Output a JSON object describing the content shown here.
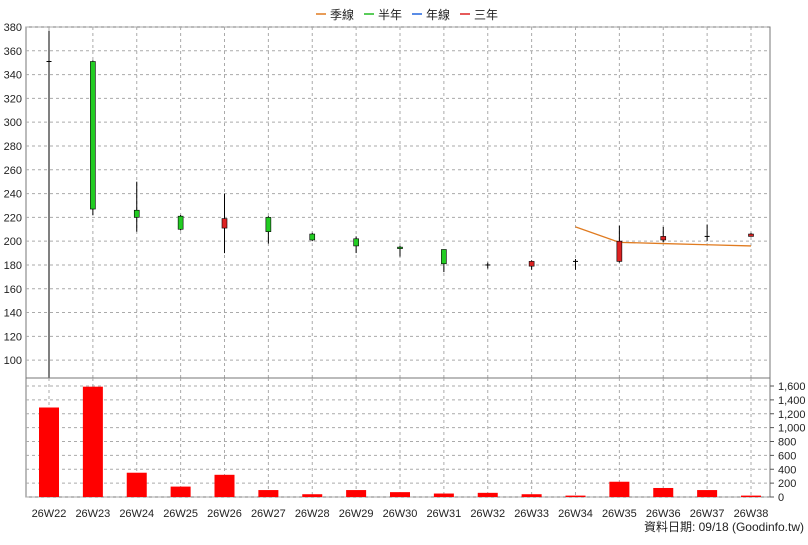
{
  "chart_data": {
    "type": "candlestick-volume",
    "legend": [
      {
        "label": "季線",
        "color": "#E07B20"
      },
      {
        "label": "半年",
        "color": "#22BB22"
      },
      {
        "label": "年線",
        "color": "#2266DD"
      },
      {
        "label": "三年",
        "color": "#DD2222"
      }
    ],
    "categories": [
      "26W22",
      "26W23",
      "26W24",
      "26W25",
      "26W26",
      "26W27",
      "26W28",
      "26W29",
      "26W30",
      "26W31",
      "26W32",
      "26W33",
      "26W34",
      "26W35",
      "26W36",
      "26W37",
      "26W38"
    ],
    "price": {
      "ylim": [
        85,
        380
      ],
      "ticks": [
        100,
        120,
        140,
        160,
        180,
        200,
        220,
        240,
        260,
        280,
        300,
        320,
        340,
        360,
        380
      ],
      "candles": [
        {
          "open": 351,
          "high": 377,
          "low": 85,
          "close": 351
        },
        {
          "open": 227,
          "high": 352,
          "low": 222,
          "close": 351
        },
        {
          "open": 220,
          "high": 250,
          "low": 208,
          "close": 226
        },
        {
          "open": 210,
          "high": 222,
          "low": 209,
          "close": 221
        },
        {
          "open": 219,
          "high": 240,
          "low": 190,
          "close": 211
        },
        {
          "open": 208,
          "high": 221,
          "low": 198,
          "close": 220
        },
        {
          "open": 201,
          "high": 207,
          "low": 200,
          "close": 206
        },
        {
          "open": 196,
          "high": 204,
          "low": 190,
          "close": 202
        },
        {
          "open": 194,
          "high": 196,
          "low": 187,
          "close": 195
        },
        {
          "open": 181,
          "high": 193,
          "low": 174,
          "close": 193
        },
        {
          "open": 180,
          "high": 182,
          "low": 177,
          "close": 180
        },
        {
          "open": 183,
          "high": 184,
          "low": 176,
          "close": 179
        },
        {
          "open": 183,
          "high": 185,
          "low": 176,
          "close": 183
        },
        {
          "open": 200,
          "high": 213,
          "low": 182,
          "close": 183
        },
        {
          "open": 204,
          "high": 212,
          "low": 199,
          "close": 201
        },
        {
          "open": 204,
          "high": 214,
          "low": 200,
          "close": 204
        },
        {
          "open": 206,
          "high": 207,
          "low": 204,
          "close": 204
        }
      ],
      "ma_quarter": [
        null,
        null,
        null,
        null,
        null,
        null,
        null,
        null,
        null,
        null,
        null,
        null,
        212,
        199,
        198,
        197,
        196
      ]
    },
    "volume": {
      "ylim": [
        0,
        1600
      ],
      "ticks": [
        0,
        200,
        400,
        600,
        800,
        "1,000",
        "1,200",
        "1,400",
        "1,600"
      ],
      "values": [
        1290,
        1590,
        350,
        150,
        320,
        100,
        40,
        100,
        70,
        50,
        60,
        40,
        20,
        220,
        130,
        100,
        20
      ]
    },
    "footer": "資料日期: 09/18  (Goodinfo.tw)"
  }
}
